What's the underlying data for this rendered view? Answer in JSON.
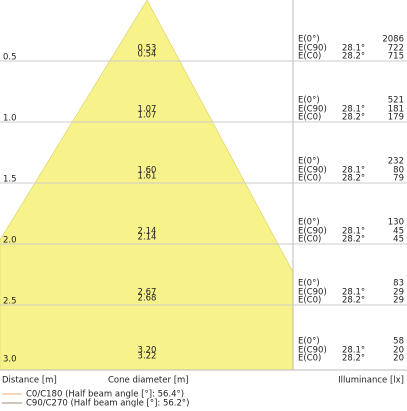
{
  "labels": {
    "e0": "E(0°)",
    "ec90": "E(C90)",
    "ec0": "E(C0)"
  },
  "rows": [
    {
      "distance": "0.5",
      "diameter_c0": "0.53",
      "diameter_c90": "0.54",
      "e0": "2086",
      "angle_c90": "28.1°",
      "e_c90": "722",
      "angle_c0": "28.2°",
      "e_c0": "715"
    },
    {
      "distance": "1.0",
      "diameter_c0": "1.07",
      "diameter_c90": "1.07",
      "e0": "521",
      "angle_c90": "28.1°",
      "e_c90": "181",
      "angle_c0": "28.2°",
      "e_c0": "179"
    },
    {
      "distance": "1.5",
      "diameter_c0": "1.60",
      "diameter_c90": "1.61",
      "e0": "232",
      "angle_c90": "28.1°",
      "e_c90": "80",
      "angle_c0": "28.2°",
      "e_c0": "79"
    },
    {
      "distance": "2.0",
      "diameter_c0": "2.14",
      "diameter_c90": "2.14",
      "e0": "130",
      "angle_c90": "28.1°",
      "e_c90": "45",
      "angle_c0": "28.2°",
      "e_c0": "45"
    },
    {
      "distance": "2.5",
      "diameter_c0": "2.67",
      "diameter_c90": "2.68",
      "e0": "83",
      "angle_c90": "28.1°",
      "e_c90": "29",
      "angle_c0": "28.2°",
      "e_c0": "29"
    },
    {
      "distance": "3.0",
      "diameter_c0": "3.20",
      "diameter_c90": "3.22",
      "e0": "58",
      "angle_c90": "28.1°",
      "e_c90": "20",
      "angle_c0": "28.2°",
      "e_c0": "20"
    }
  ],
  "footer": {
    "distance": "Distance [m]",
    "diameter": "Cone diameter [m]",
    "illuminance": "Illuminance [lx]"
  },
  "legend": [
    "C0/C180 (Half beam angle [°]: 56.4°)",
    "C90/C270 (Half beam angle [°]: 56.2°)"
  ]
}
